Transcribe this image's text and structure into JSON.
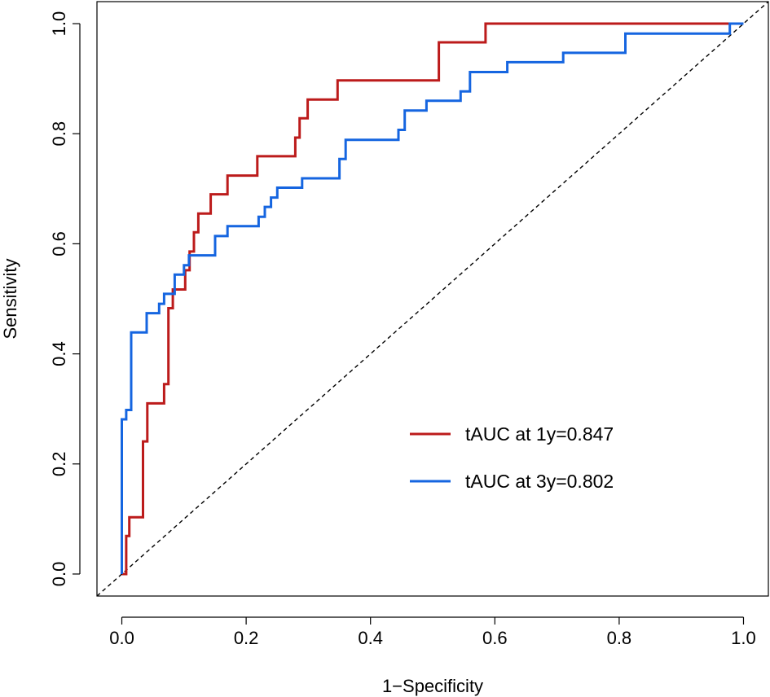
{
  "chart_data": {
    "type": "line",
    "title": "",
    "xlabel": "1−Specificity",
    "ylabel": "Sensitivity",
    "xlim": [
      -0.04,
      1.04
    ],
    "ylim": [
      -0.04,
      1.04
    ],
    "xticks": [
      0.0,
      0.2,
      0.4,
      0.6,
      0.8,
      1.0
    ],
    "yticks": [
      0.0,
      0.2,
      0.4,
      0.6,
      0.8,
      1.0
    ],
    "xtick_labels": [
      "0.0",
      "0.2",
      "0.4",
      "0.6",
      "0.8",
      "1.0"
    ],
    "ytick_labels": [
      "0.0",
      "0.2",
      "0.4",
      "0.6",
      "0.8",
      "1.0"
    ],
    "grid": false,
    "legend_position": "bottom-right",
    "reference_line": {
      "name": "chance",
      "style": "dashed",
      "color": "#000000",
      "x": [
        0,
        1
      ],
      "y": [
        0,
        1
      ]
    },
    "series": [
      {
        "name": "tAUC at 1y=0.847",
        "color": "#BC1B1B",
        "x": [
          0.0,
          0.007,
          0.007,
          0.012,
          0.012,
          0.017,
          0.017,
          0.034,
          0.034,
          0.041,
          0.041,
          0.068,
          0.068,
          0.075,
          0.075,
          0.082,
          0.082,
          0.102,
          0.102,
          0.109,
          0.109,
          0.116,
          0.116,
          0.123,
          0.123,
          0.143,
          0.143,
          0.17,
          0.17,
          0.218,
          0.218,
          0.279,
          0.279,
          0.286,
          0.286,
          0.299,
          0.299,
          0.347,
          0.347,
          0.51,
          0.51,
          0.585,
          0.585,
          1.0
        ],
        "y": [
          0.0,
          0.0,
          0.069,
          0.069,
          0.103,
          0.103,
          0.103,
          0.103,
          0.241,
          0.241,
          0.31,
          0.31,
          0.345,
          0.345,
          0.483,
          0.483,
          0.517,
          0.517,
          0.552,
          0.552,
          0.586,
          0.586,
          0.621,
          0.621,
          0.655,
          0.655,
          0.69,
          0.69,
          0.724,
          0.724,
          0.759,
          0.759,
          0.793,
          0.793,
          0.828,
          0.828,
          0.862,
          0.862,
          0.897,
          0.897,
          0.966,
          0.966,
          1.0,
          1.0
        ]
      },
      {
        "name": "tAUC at 3y=0.802",
        "color": "#1565E0",
        "x": [
          0.0,
          0.0,
          0.007,
          0.007,
          0.015,
          0.015,
          0.04,
          0.04,
          0.06,
          0.06,
          0.068,
          0.068,
          0.085,
          0.085,
          0.1,
          0.1,
          0.108,
          0.108,
          0.15,
          0.15,
          0.17,
          0.17,
          0.22,
          0.22,
          0.23,
          0.23,
          0.24,
          0.24,
          0.25,
          0.25,
          0.26,
          0.26,
          0.29,
          0.29,
          0.35,
          0.35,
          0.36,
          0.36,
          0.445,
          0.445,
          0.455,
          0.455,
          0.49,
          0.49,
          0.545,
          0.545,
          0.56,
          0.56,
          0.62,
          0.62,
          0.71,
          0.71,
          0.81,
          0.81,
          0.978,
          0.978,
          1.0
        ],
        "y": [
          0.0,
          0.281,
          0.281,
          0.298,
          0.298,
          0.439,
          0.439,
          0.474,
          0.474,
          0.491,
          0.491,
          0.509,
          0.509,
          0.544,
          0.544,
          0.561,
          0.561,
          0.579,
          0.579,
          0.614,
          0.614,
          0.632,
          0.632,
          0.649,
          0.649,
          0.667,
          0.667,
          0.684,
          0.684,
          0.702,
          0.702,
          0.702,
          0.702,
          0.719,
          0.719,
          0.754,
          0.754,
          0.789,
          0.789,
          0.807,
          0.807,
          0.842,
          0.842,
          0.86,
          0.86,
          0.877,
          0.877,
          0.912,
          0.912,
          0.93,
          0.93,
          0.947,
          0.947,
          0.982,
          0.982,
          1.0,
          1.0
        ]
      }
    ]
  }
}
